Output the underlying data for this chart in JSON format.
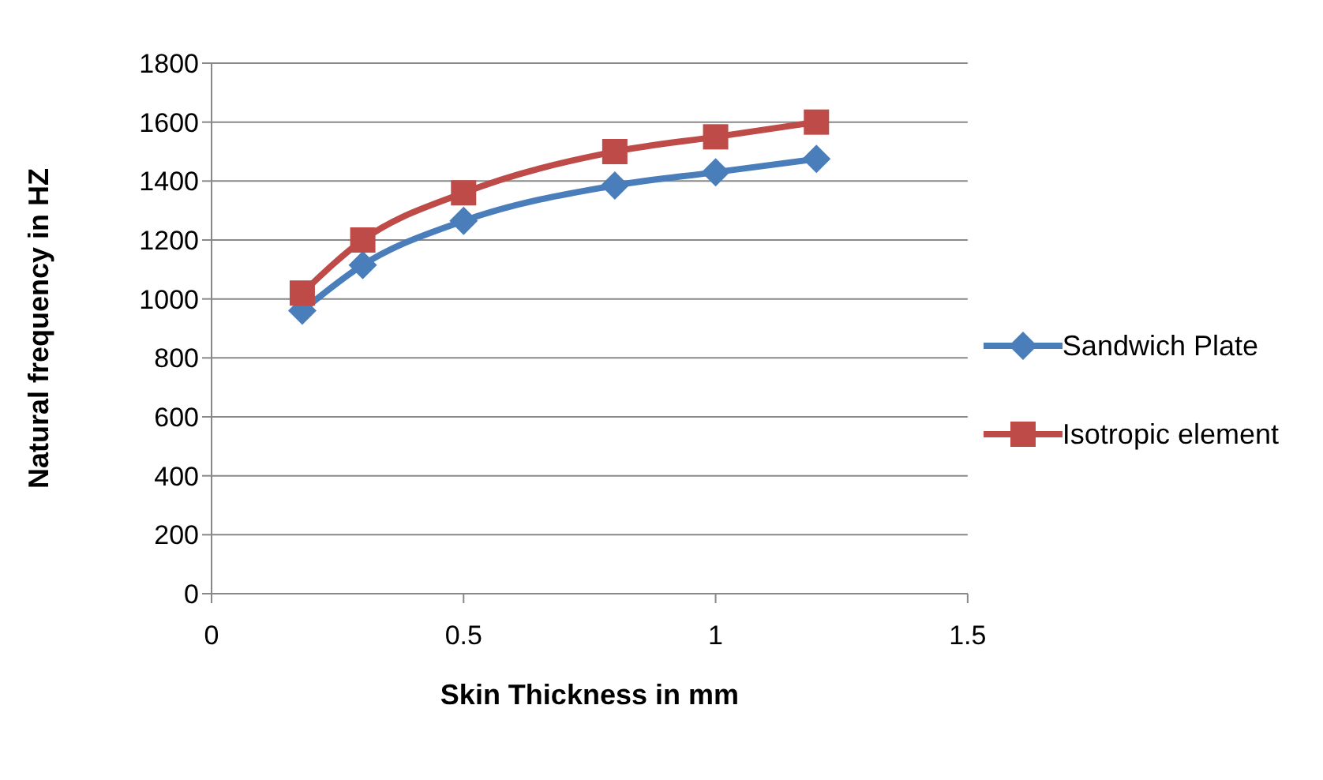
{
  "chart_data": {
    "type": "line",
    "xlabel": "Skin Thickness in mm",
    "ylabel": "Natural frequency in HZ",
    "x": [
      0.18,
      0.3,
      0.5,
      0.8,
      1,
      1.2
    ],
    "series": [
      {
        "name": "Sandwich Plate",
        "color": "#4a7ebb",
        "marker": "diamond",
        "values": [
          960,
          1115,
          1265,
          1385,
          1430,
          1475
        ]
      },
      {
        "name": "Isotropic element",
        "color": "#be4b48",
        "marker": "square",
        "values": [
          1020,
          1200,
          1360,
          1500,
          1550,
          1600
        ]
      }
    ],
    "xlim": [
      0,
      1.5
    ],
    "xticks": [
      0,
      0.5,
      1,
      1.5
    ],
    "ylim": [
      0,
      1800
    ],
    "yticks": [
      0,
      200,
      400,
      600,
      800,
      1000,
      1200,
      1400,
      1600,
      1800
    ],
    "grid": "y",
    "legend": "right",
    "line_style": "solid"
  }
}
